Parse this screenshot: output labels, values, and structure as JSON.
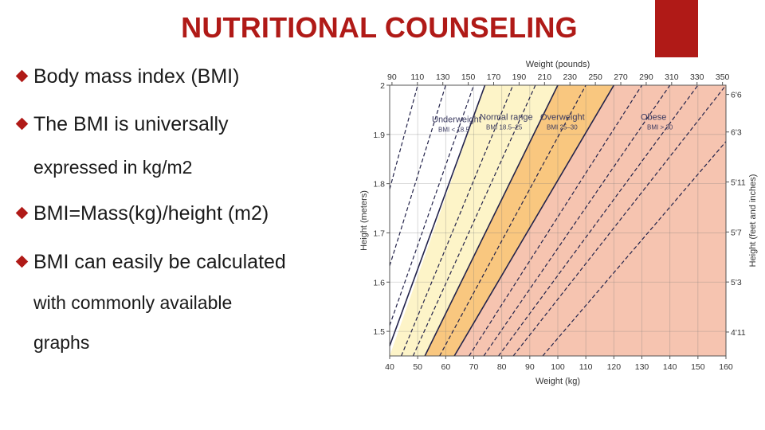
{
  "slide": {
    "title": "NUTRITIONAL COUNSELING",
    "accent_color": "#b01a17",
    "bullets": [
      {
        "text": "Body mass index (BMI)",
        "marker": true
      },
      {
        "text": "The BMI is universally",
        "marker": true
      },
      {
        "text": "expressed in kg/m2",
        "marker": false
      },
      {
        "text": "BMI=Mass(kg)/height (m2)",
        "marker": true
      },
      {
        "text": "BMI can easily be calculated",
        "marker": true
      },
      {
        "text": "with commonly available",
        "marker": false
      },
      {
        "text": "graphs",
        "marker": false
      }
    ]
  },
  "chart_data": {
    "type": "area",
    "top_axis_label": "Weight (pounds)",
    "bottom_axis_label": "Weight (kg)",
    "left_axis_label": "Height (meters)",
    "right_axis_label": "Height (feet and inches)",
    "top_ticks": [
      "90",
      "110",
      "130",
      "150",
      "170",
      "190",
      "210",
      "230",
      "250",
      "270",
      "290",
      "310",
      "330",
      "350"
    ],
    "bottom_ticks": [
      40,
      50,
      60,
      70,
      80,
      90,
      100,
      110,
      120,
      130,
      140,
      150,
      160
    ],
    "left_ticks": [
      "2",
      "1.9",
      "1.8",
      "1.7",
      "1.6",
      "1.5"
    ],
    "right_ticks": [
      "6'6",
      "6'3",
      "5'11",
      "5'7",
      "5'3",
      "4'11"
    ],
    "xlim": [
      40,
      160
    ],
    "ylim": [
      1.45,
      2.0
    ],
    "regions": [
      {
        "name": "Underweight",
        "sublabel": "BMI < 18.5",
        "bmi_range": [
          0,
          18.5
        ],
        "color": "#ffffff"
      },
      {
        "name": "Normal range",
        "sublabel": "BMI 18.5–25",
        "bmi_range": [
          18.5,
          25
        ],
        "color": "#fdf4c8"
      },
      {
        "name": "Overweight",
        "sublabel": "BMI 25–30",
        "bmi_range": [
          25,
          30
        ],
        "color": "#f9c77f"
      },
      {
        "name": "Obese",
        "sublabel": "BMI > 30",
        "bmi_range": [
          30,
          100
        ],
        "color": "#f6c4b0"
      }
    ],
    "dashed_bmi_lines": [
      12.5,
      15,
      17.5,
      21,
      23,
      27.5,
      32.5,
      35,
      37.5,
      40,
      45
    ],
    "grid": true
  }
}
